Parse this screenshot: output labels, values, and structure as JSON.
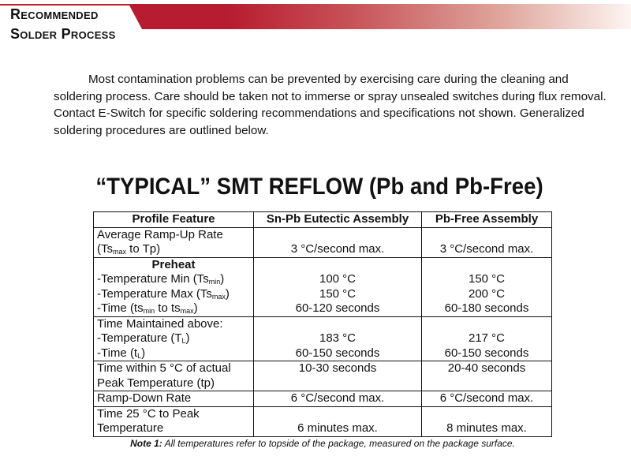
{
  "header": {
    "line1": "Recommended",
    "line2": "Solder Process",
    "accent": "#b81c30"
  },
  "paragraph": "Most contamination problems can be prevented by exercising care during the cleaning and soldering process. Care should be taken not to immerse or spray unsealed switches during flux removal. Contact E-Switch for specific soldering recommendations and specifications not shown. Generalized soldering procedures are outlined below.",
  "title": "“TYPICAL” SMT REFLOW (Pb and Pb-Free)",
  "table": {
    "headers": [
      "Profile Feature",
      "Sn-Pb Eutectic Assembly",
      "Pb-Free Assembly"
    ],
    "rows": [
      {
        "label": [
          [
            [
              "Average Ramp-Up Rate",
              ""
            ]
          ],
          [
            [
              "(Ts",
              ""
            ],
            [
              "max",
              "sub"
            ],
            [
              " to Tp)",
              ""
            ]
          ]
        ],
        "snpb": [
          "3 °C/second max."
        ],
        "pbfree": [
          "3 °C/second max."
        ],
        "align": "bottom"
      },
      {
        "heading": "Preheat",
        "label": [
          [
            [
              "-Temperature Min (Ts",
              ""
            ],
            [
              "min",
              "sub"
            ],
            [
              ")",
              ""
            ]
          ],
          [
            [
              "-Temperature Max (Ts",
              ""
            ],
            [
              "max",
              "sub"
            ],
            [
              ")",
              ""
            ]
          ],
          [
            [
              "-Time (ts",
              ""
            ],
            [
              "min",
              "sub"
            ],
            [
              " to ts",
              ""
            ],
            [
              "max",
              "sub"
            ],
            [
              ")",
              ""
            ]
          ]
        ],
        "snpb": [
          "",
          "100 °C",
          "150 °C",
          "60-120 seconds"
        ],
        "pbfree": [
          "",
          "150 °C",
          "200 °C",
          "60-180 seconds"
        ],
        "align": "top"
      },
      {
        "label": [
          [
            [
              "Time Maintained above:",
              ""
            ]
          ],
          [
            [
              "-Temperature (T",
              ""
            ],
            [
              "L",
              "sub"
            ],
            [
              ")",
              ""
            ]
          ],
          [
            [
              "-Time (t",
              ""
            ],
            [
              "L",
              "sub"
            ],
            [
              ")",
              ""
            ]
          ]
        ],
        "snpb": [
          "",
          "183 °C",
          "60-150 seconds"
        ],
        "pbfree": [
          "",
          "217 °C",
          "60-150 seconds"
        ],
        "align": "top"
      },
      {
        "label": [
          [
            [
              "Time within 5 °C of actual",
              ""
            ]
          ],
          [
            [
              "Peak Temperature (tp)",
              ""
            ]
          ]
        ],
        "snpb": [
          "10-30 seconds"
        ],
        "pbfree": [
          "20-40 seconds"
        ],
        "align": "top"
      },
      {
        "label": [
          [
            [
              "Ramp-Down Rate",
              ""
            ]
          ]
        ],
        "snpb": [
          "6 °C/second max."
        ],
        "pbfree": [
          "6 °C/second max."
        ],
        "align": "top"
      },
      {
        "label": [
          [
            [
              "Time 25 °C to Peak",
              ""
            ]
          ],
          [
            [
              "Temperature",
              ""
            ]
          ]
        ],
        "snpb": [
          "6 minutes max."
        ],
        "pbfree": [
          "8 minutes max."
        ],
        "align": "bottom"
      }
    ]
  },
  "note": {
    "label": "Note 1:",
    "text": " All temperatures refer to topside of the package, measured on the package surface."
  }
}
